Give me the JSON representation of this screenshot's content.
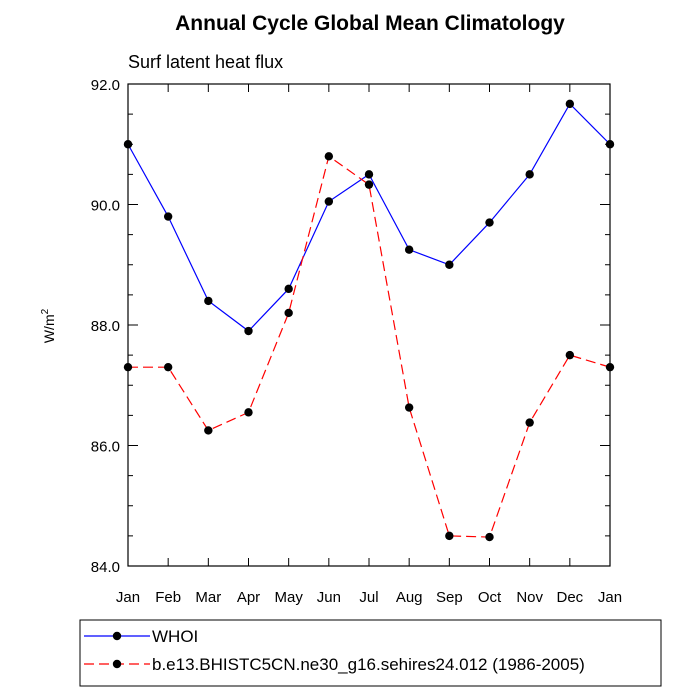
{
  "chart_data": {
    "type": "line",
    "title": "Annual Cycle Global Mean Climatology",
    "subtitle": "Surf latent heat flux",
    "ylabel_base": "W/m",
    "ylabel_sup": "2",
    "xlabel": "",
    "categories": [
      "Jan",
      "Feb",
      "Mar",
      "Apr",
      "May",
      "Jun",
      "Jul",
      "Aug",
      "Sep",
      "Oct",
      "Nov",
      "Dec",
      "Jan"
    ],
    "ylim": [
      84.0,
      92.0
    ],
    "yticks": [
      84.0,
      86.0,
      88.0,
      90.0,
      92.0
    ],
    "ytick_labels": [
      "84.0",
      "86.0",
      "88.0",
      "90.0",
      "92.0"
    ],
    "grid": false,
    "legend_position": "bottom",
    "series": [
      {
        "name": "WHOI",
        "color": "#0000ff",
        "dash": "solid",
        "values": [
          91.0,
          89.8,
          88.4,
          87.9,
          88.6,
          90.05,
          90.5,
          89.25,
          89.0,
          89.7,
          90.5,
          91.67,
          91.0
        ]
      },
      {
        "name": "b.e13.BHISTC5CN.ne30_g16.sehires24.012 (1986-2005)",
        "color": "#ff0000",
        "dash": "dashed",
        "values": [
          87.3,
          87.3,
          86.25,
          86.55,
          88.2,
          90.8,
          90.33,
          86.63,
          84.5,
          84.48,
          86.38,
          87.5,
          87.3
        ]
      }
    ]
  }
}
